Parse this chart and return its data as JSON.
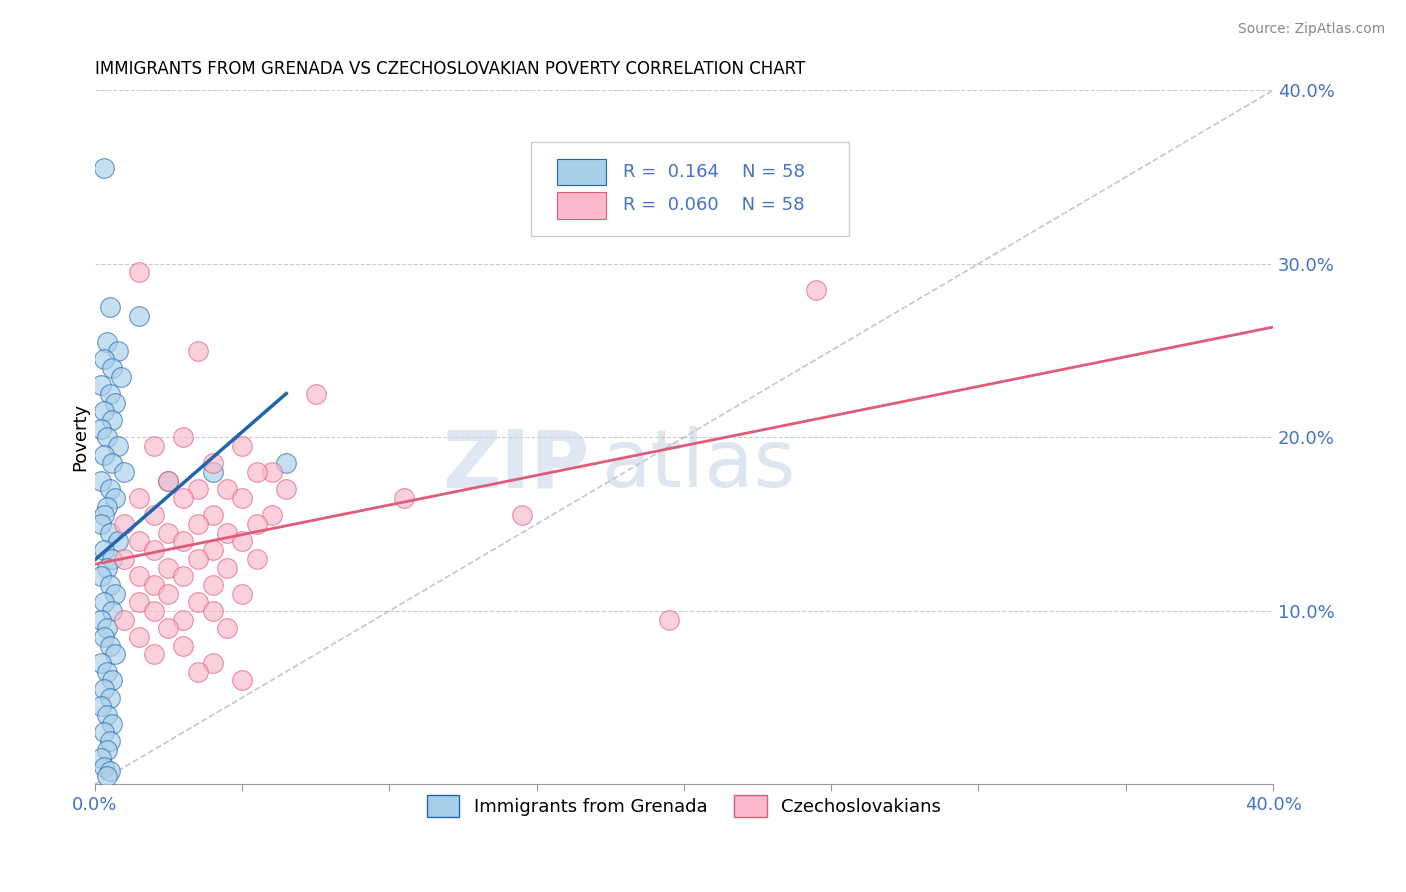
{
  "title": "IMMIGRANTS FROM GRENADA VS CZECHOSLOVAKIAN POVERTY CORRELATION CHART",
  "source": "Source: ZipAtlas.com",
  "ylabel": "Poverty",
  "xmin": 0.0,
  "xmax": 40.0,
  "ymin": 0.0,
  "ymax": 40.0,
  "legend_label_blue": "Immigrants from Grenada",
  "legend_label_pink": "Czechoslovakians",
  "blue_color": "#a8cfe8",
  "pink_color": "#f9b8cb",
  "blue_line_color": "#2166ac",
  "pink_line_color": "#e05a7a",
  "watermark_zip": "ZIP",
  "watermark_atlas": "atlas",
  "blue_scatter": [
    [
      0.3,
      35.5
    ],
    [
      0.5,
      27.5
    ],
    [
      1.5,
      27.0
    ],
    [
      0.4,
      25.5
    ],
    [
      0.8,
      25.0
    ],
    [
      0.3,
      24.5
    ],
    [
      0.6,
      24.0
    ],
    [
      0.9,
      23.5
    ],
    [
      0.2,
      23.0
    ],
    [
      0.5,
      22.5
    ],
    [
      0.7,
      22.0
    ],
    [
      0.3,
      21.5
    ],
    [
      0.6,
      21.0
    ],
    [
      0.2,
      20.5
    ],
    [
      0.4,
      20.0
    ],
    [
      0.8,
      19.5
    ],
    [
      0.3,
      19.0
    ],
    [
      0.6,
      18.5
    ],
    [
      1.0,
      18.0
    ],
    [
      0.2,
      17.5
    ],
    [
      0.5,
      17.0
    ],
    [
      0.7,
      16.5
    ],
    [
      0.4,
      16.0
    ],
    [
      0.3,
      15.5
    ],
    [
      2.5,
      17.5
    ],
    [
      4.0,
      18.0
    ],
    [
      0.2,
      15.0
    ],
    [
      0.5,
      14.5
    ],
    [
      0.8,
      14.0
    ],
    [
      0.3,
      13.5
    ],
    [
      0.6,
      13.0
    ],
    [
      0.4,
      12.5
    ],
    [
      0.2,
      12.0
    ],
    [
      0.5,
      11.5
    ],
    [
      0.7,
      11.0
    ],
    [
      0.3,
      10.5
    ],
    [
      0.6,
      10.0
    ],
    [
      0.2,
      9.5
    ],
    [
      0.4,
      9.0
    ],
    [
      0.3,
      8.5
    ],
    [
      0.5,
      8.0
    ],
    [
      0.7,
      7.5
    ],
    [
      0.2,
      7.0
    ],
    [
      0.4,
      6.5
    ],
    [
      0.6,
      6.0
    ],
    [
      0.3,
      5.5
    ],
    [
      0.5,
      5.0
    ],
    [
      0.2,
      4.5
    ],
    [
      0.4,
      4.0
    ],
    [
      0.6,
      3.5
    ],
    [
      0.3,
      3.0
    ],
    [
      0.5,
      2.5
    ],
    [
      0.4,
      2.0
    ],
    [
      0.2,
      1.5
    ],
    [
      0.3,
      1.0
    ],
    [
      0.5,
      0.8
    ],
    [
      0.4,
      0.5
    ],
    [
      6.5,
      18.5
    ]
  ],
  "pink_scatter": [
    [
      1.5,
      29.5
    ],
    [
      7.5,
      22.5
    ],
    [
      3.5,
      25.0
    ],
    [
      2.0,
      19.5
    ],
    [
      3.0,
      20.0
    ],
    [
      5.0,
      19.5
    ],
    [
      4.0,
      18.5
    ],
    [
      6.0,
      18.0
    ],
    [
      5.5,
      18.0
    ],
    [
      2.5,
      17.5
    ],
    [
      3.5,
      17.0
    ],
    [
      4.5,
      17.0
    ],
    [
      6.5,
      17.0
    ],
    [
      1.5,
      16.5
    ],
    [
      3.0,
      16.5
    ],
    [
      5.0,
      16.5
    ],
    [
      2.0,
      15.5
    ],
    [
      4.0,
      15.5
    ],
    [
      6.0,
      15.5
    ],
    [
      1.0,
      15.0
    ],
    [
      3.5,
      15.0
    ],
    [
      5.5,
      15.0
    ],
    [
      2.5,
      14.5
    ],
    [
      4.5,
      14.5
    ],
    [
      1.5,
      14.0
    ],
    [
      3.0,
      14.0
    ],
    [
      5.0,
      14.0
    ],
    [
      2.0,
      13.5
    ],
    [
      4.0,
      13.5
    ],
    [
      1.0,
      13.0
    ],
    [
      3.5,
      13.0
    ],
    [
      5.5,
      13.0
    ],
    [
      2.5,
      12.5
    ],
    [
      4.5,
      12.5
    ],
    [
      1.5,
      12.0
    ],
    [
      3.0,
      12.0
    ],
    [
      2.0,
      11.5
    ],
    [
      4.0,
      11.5
    ],
    [
      2.5,
      11.0
    ],
    [
      5.0,
      11.0
    ],
    [
      1.5,
      10.5
    ],
    [
      3.5,
      10.5
    ],
    [
      2.0,
      10.0
    ],
    [
      4.0,
      10.0
    ],
    [
      1.0,
      9.5
    ],
    [
      3.0,
      9.5
    ],
    [
      2.5,
      9.0
    ],
    [
      4.5,
      9.0
    ],
    [
      1.5,
      8.5
    ],
    [
      3.0,
      8.0
    ],
    [
      2.0,
      7.5
    ],
    [
      4.0,
      7.0
    ],
    [
      3.5,
      6.5
    ],
    [
      5.0,
      6.0
    ],
    [
      24.5,
      28.5
    ],
    [
      19.5,
      9.5
    ],
    [
      14.5,
      15.5
    ],
    [
      10.5,
      16.5
    ]
  ]
}
